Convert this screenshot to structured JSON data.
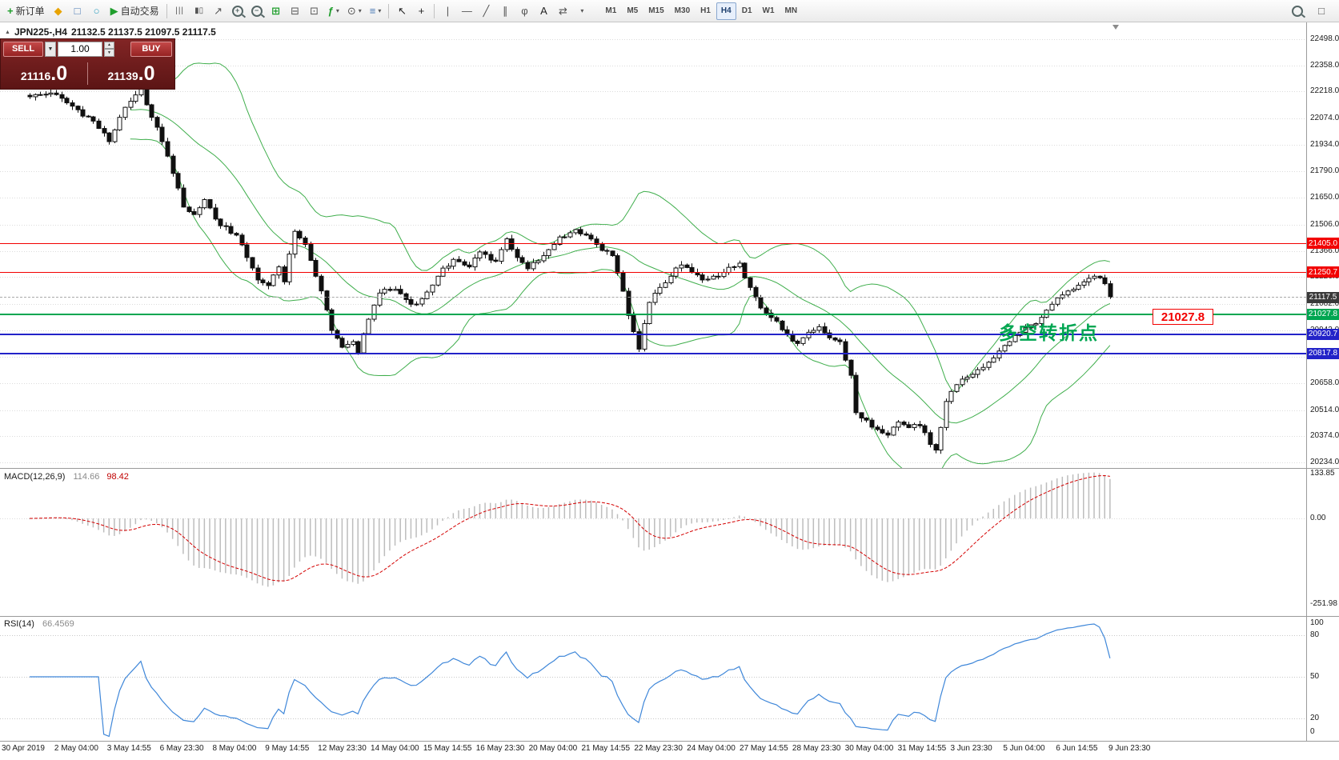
{
  "toolbar": {
    "new_order_label": "新订单",
    "autotrade_label": "自动交易",
    "timeframes": [
      "M1",
      "M5",
      "M15",
      "M30",
      "H1",
      "H4",
      "D1",
      "W1",
      "MN"
    ],
    "active_timeframe": "H4"
  },
  "icons": {
    "new_order_plus": "+",
    "market_watch": "◆",
    "data_window": "□",
    "navigator": "○",
    "autotrade_play": "▶",
    "chart_bars": "|||",
    "chart_candles": "▮▯",
    "chart_line": "↗",
    "zoom_in_sign": "+",
    "zoom_out_sign": "−",
    "tile_windows": "⊞",
    "cascade_a": "⊟",
    "cascade_b": "⊡",
    "indicators": "ƒ",
    "periods": "⊙",
    "templates": "≡",
    "caret_down": "▾",
    "cursor": "↖",
    "crosshair": "+",
    "vertical_line": "|",
    "horizontal_line": "—",
    "trend_line": "╱",
    "channel": "∥",
    "fibonacci": "φ",
    "text_tool": "A",
    "arrows_tool": "⇄",
    "shapes_more": "▾",
    "new_chart": "□",
    "symbol_header_marker": "▲",
    "volume_caret": "▼",
    "spinner_up": "▲",
    "spinner_down": "▼"
  },
  "symbol_header": {
    "symbol": "JPN225-,H4",
    "ohlc": "21132.5 21137.5 21097.5 21117.5"
  },
  "trade_panel": {
    "sell_label": "SELL",
    "buy_label": "BUY",
    "volume": "1.00",
    "sell_price": "21116",
    "sell_price_frac": ".0",
    "buy_price": "21139",
    "buy_price_frac": ".0"
  },
  "annotations": {
    "turning_point_text": "多空转折点",
    "turning_point_color": "#00a651",
    "price_box_text": "21027.8",
    "price_box_color": "#f20000"
  },
  "colors": {
    "bollinger": "#3fae4c",
    "candle_outline": "#101010",
    "grid": "#dcdcdc",
    "macd_histogram": "#bdbdbd",
    "macd_signal": "#d40000",
    "rsi_line": "#3f87d9",
    "level_red": "#f20000",
    "level_green": "#00a651",
    "level_blue": "#2323c8",
    "current_badge": "#3a3a3a"
  },
  "main_chart": {
    "price_ticks": [
      "22498.0",
      "22358.0",
      "22218.0",
      "22074.0",
      "21934.0",
      "21790.0",
      "21650.0",
      "21506.0",
      "21366.0",
      "21226.0",
      "21082.0",
      "20942.0",
      "20798.0",
      "20658.0",
      "20514.0",
      "20374.0",
      "20234.0"
    ],
    "levels": [
      {
        "label": "21405.0",
        "price": 21405.0,
        "color": "#f20000",
        "thickness": 1
      },
      {
        "label": "21250.7",
        "price": 21250.7,
        "color": "#f20000",
        "thickness": 1
      },
      {
        "label": "21117.5",
        "price": 21117.5,
        "color": "#3a3a3a",
        "thickness": 1,
        "type": "current"
      },
      {
        "label": "21027.8",
        "price": 21027.8,
        "color": "#00a651",
        "thickness": 2
      },
      {
        "label": "20920.7",
        "price": 20920.7,
        "color": "#2323c8",
        "thickness": 2
      },
      {
        "label": "20817.8",
        "price": 20817.8,
        "color": "#2323c8",
        "thickness": 2
      }
    ]
  },
  "chart_data": {
    "type": "candlestick",
    "symbol": "JPN225",
    "timeframe": "H4",
    "ohlc_current": {
      "open": 21132.5,
      "high": 21137.5,
      "low": 21097.5,
      "close": 21117.5
    },
    "price_range": [
      20234.0,
      22498.0
    ],
    "candle_count": 205,
    "price_anchors": [
      [
        0,
        22190
      ],
      [
        4,
        22210
      ],
      [
        8,
        22140
      ],
      [
        12,
        22060
      ],
      [
        15,
        21950
      ],
      [
        17,
        22080
      ],
      [
        20,
        22200
      ],
      [
        21,
        22240
      ],
      [
        23,
        22080
      ],
      [
        25,
        21950
      ],
      [
        27,
        21780
      ],
      [
        29,
        21600
      ],
      [
        31,
        21560
      ],
      [
        33,
        21640
      ],
      [
        36,
        21500
      ],
      [
        39,
        21450
      ],
      [
        41,
        21330
      ],
      [
        43,
        21210
      ],
      [
        45,
        21180
      ],
      [
        47,
        21280
      ],
      [
        48,
        21200
      ],
      [
        50,
        21470
      ],
      [
        52,
        21400
      ],
      [
        54,
        21230
      ],
      [
        56,
        21050
      ],
      [
        57,
        20940
      ],
      [
        59,
        20850
      ],
      [
        61,
        20880
      ],
      [
        62,
        20820
      ],
      [
        64,
        21000
      ],
      [
        66,
        21140
      ],
      [
        69,
        21160
      ],
      [
        72,
        21080
      ],
      [
        74,
        21110
      ],
      [
        77,
        21230
      ],
      [
        80,
        21320
      ],
      [
        83,
        21280
      ],
      [
        85,
        21360
      ],
      [
        88,
        21310
      ],
      [
        90,
        21430
      ],
      [
        92,
        21330
      ],
      [
        94,
        21270
      ],
      [
        97,
        21340
      ],
      [
        100,
        21440
      ],
      [
        103,
        21480
      ],
      [
        105,
        21450
      ],
      [
        107,
        21400
      ],
      [
        110,
        21340
      ],
      [
        112,
        21150
      ],
      [
        113,
        21020
      ],
      [
        115,
        20840
      ],
      [
        117,
        21090
      ],
      [
        119,
        21170
      ],
      [
        121,
        21230
      ],
      [
        123,
        21290
      ],
      [
        125,
        21250
      ],
      [
        127,
        21210
      ],
      [
        129,
        21230
      ],
      [
        131,
        21250
      ],
      [
        134,
        21300
      ],
      [
        136,
        21170
      ],
      [
        138,
        21060
      ],
      [
        141,
        20990
      ],
      [
        143,
        20920
      ],
      [
        145,
        20870
      ],
      [
        147,
        20930
      ],
      [
        149,
        20960
      ],
      [
        151,
        20900
      ],
      [
        153,
        20880
      ],
      [
        155,
        20700
      ],
      [
        156,
        20500
      ],
      [
        158,
        20460
      ],
      [
        160,
        20410
      ],
      [
        162,
        20380
      ],
      [
        164,
        20450
      ],
      [
        166,
        20420
      ],
      [
        168,
        20430
      ],
      [
        170,
        20330
      ],
      [
        171,
        20300
      ],
      [
        173,
        20560
      ],
      [
        175,
        20650
      ],
      [
        177,
        20690
      ],
      [
        179,
        20730
      ],
      [
        181,
        20770
      ],
      [
        183,
        20830
      ],
      [
        185,
        20880
      ],
      [
        187,
        20930
      ],
      [
        189,
        20970
      ],
      [
        191,
        21010
      ],
      [
        193,
        21080
      ],
      [
        195,
        21130
      ],
      [
        197,
        21160
      ],
      [
        199,
        21200
      ],
      [
        201,
        21230
      ],
      [
        203,
        21190
      ],
      [
        204,
        21117.5
      ]
    ],
    "bollinger": {
      "period": 20,
      "deviation": 2
    },
    "macd": {
      "title": "MACD(12,26,9)",
      "value_main": "114.66",
      "value_signal": "98.42",
      "scale": [
        "133.85",
        "0.00",
        "-251.98"
      ]
    },
    "rsi": {
      "title": "RSI(14)",
      "value": "66.4569",
      "scale": [
        "100",
        "80",
        "50",
        "20",
        "0"
      ],
      "levels": [
        80,
        50,
        20
      ]
    }
  },
  "time_axis": {
    "labels": [
      "30 Apr 2019",
      "2 May 04:00",
      "3 May 14:55",
      "6 May 23:30",
      "8 May 04:00",
      "9 May 14:55",
      "12 May 23:30",
      "14 May 04:00",
      "15 May 14:55",
      "16 May 23:30",
      "20 May 04:00",
      "21 May 14:55",
      "22 May 23:30",
      "24 May 04:00",
      "27 May 14:55",
      "28 May 23:30",
      "30 May 04:00",
      "31 May 14:55",
      "3 Jun 23:30",
      "5 Jun 04:00",
      "6 Jun 14:55",
      "9 Jun 23:30"
    ]
  }
}
